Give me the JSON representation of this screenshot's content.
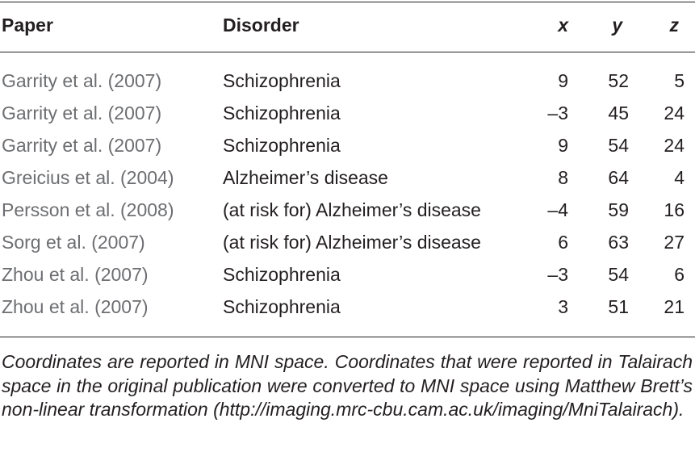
{
  "table": {
    "headers": {
      "paper": "Paper",
      "disorder": "Disorder",
      "x": "x",
      "y": "y",
      "z": "z"
    },
    "rows": [
      {
        "paper": "Garrity et al. (2007)",
        "disorder": "Schizophrenia",
        "x": "9",
        "y": "52",
        "z": "5"
      },
      {
        "paper": "Garrity et al. (2007)",
        "disorder": "Schizophrenia",
        "x": "–3",
        "y": "45",
        "z": "24"
      },
      {
        "paper": "Garrity et al. (2007)",
        "disorder": "Schizophrenia",
        "x": "9",
        "y": "54",
        "z": "24"
      },
      {
        "paper": "Greicius et al. (2004)",
        "disorder": "Alzheimer’s disease",
        "x": "8",
        "y": "64",
        "z": "4"
      },
      {
        "paper": "Persson et al. (2008)",
        "disorder": "(at risk for) Alzheimer’s disease",
        "x": "–4",
        "y": "59",
        "z": "16"
      },
      {
        "paper": "Sorg et al. (2007)",
        "disorder": "(at risk for) Alzheimer’s disease",
        "x": "6",
        "y": "63",
        "z": "27"
      },
      {
        "paper": "Zhou et al. (2007)",
        "disorder": "Schizophrenia",
        "x": "–3",
        "y": "54",
        "z": "6"
      },
      {
        "paper": "Zhou et al. (2007)",
        "disorder": "Schizophrenia",
        "x": "3",
        "y": "51",
        "z": "21"
      }
    ]
  },
  "footnote": "Coordinates are reported in MNI space. Coordinates that were reported in Talairach space in the original publication were converted to MNI space using Matthew Brett’s non-linear transformation (http://imaging.mrc-cbu.cam.ac.uk/imaging/MniTalairach).",
  "colors": {
    "text": "#231f20",
    "paper_column_text": "#6d6e71",
    "rules": "#231f20"
  }
}
